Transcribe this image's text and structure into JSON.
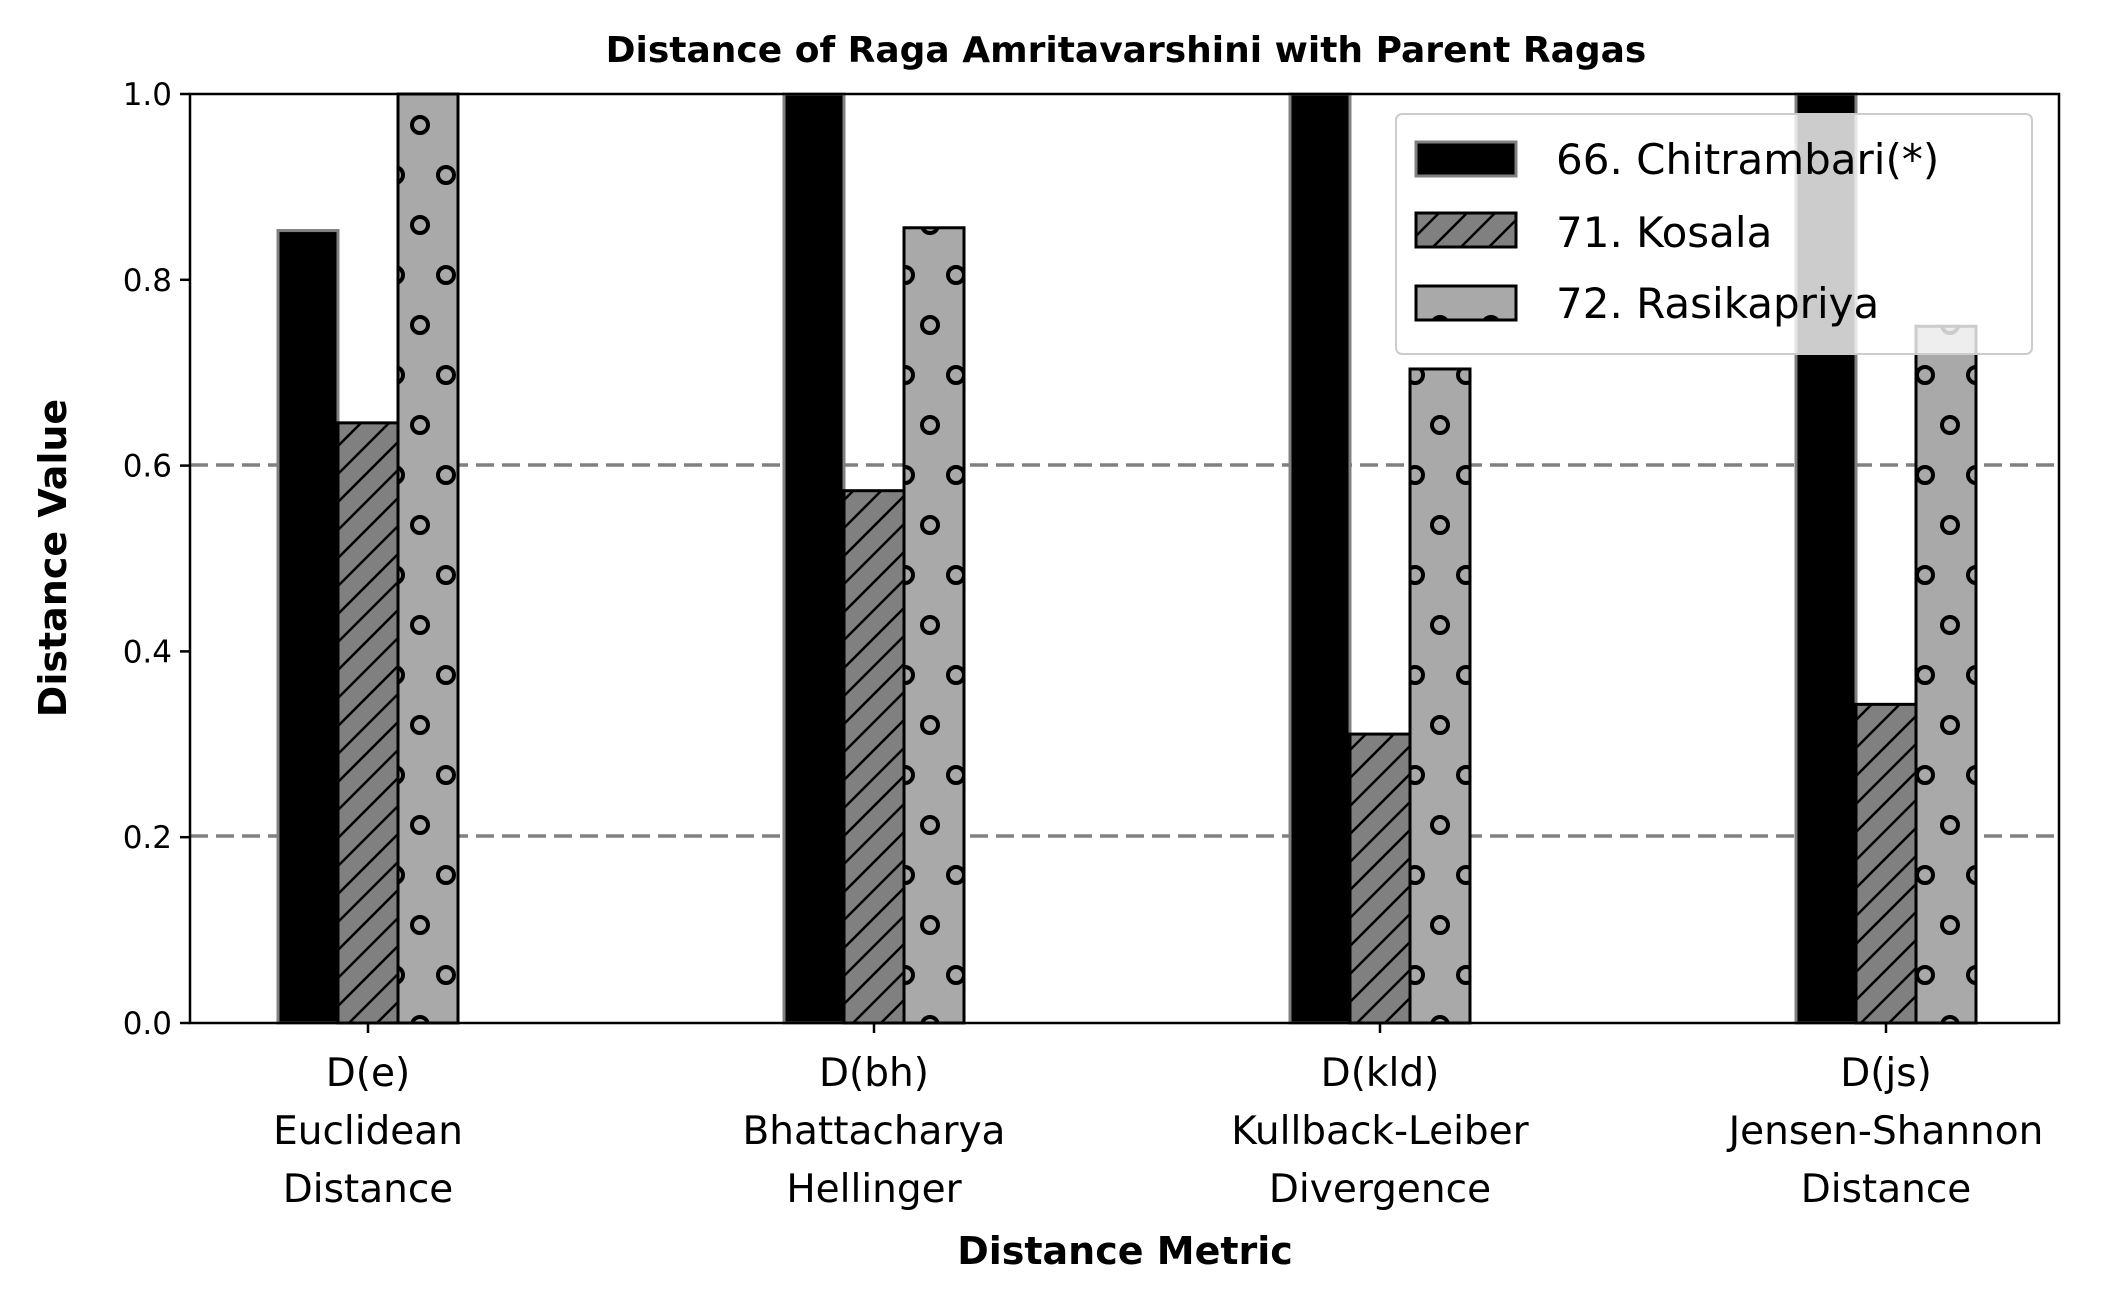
{
  "chart_data": {
    "type": "bar",
    "title": "Distance of Raga Amritavarshini with Parent Ragas",
    "xlabel": "Distance Metric",
    "ylabel": "Distance Value",
    "ylim": [
      0,
      1.0
    ],
    "yticks": [
      "0.0",
      "0.2",
      "0.4",
      "0.6",
      "0.8",
      "1.0"
    ],
    "grid": "horizontal dashed",
    "reference_lines": [
      0.2,
      0.6
    ],
    "legend_position": "top-right",
    "categories": [
      [
        "D(e)",
        "Euclidean",
        "Distance"
      ],
      [
        "D(bh)",
        "Bhattacharya",
        "Hellinger"
      ],
      [
        "D(kld)",
        "Kullback-Leiber",
        "Divergence"
      ],
      [
        "D(js)",
        "Jensen-Shannon",
        "Distance"
      ]
    ],
    "series": [
      {
        "name": "66. Chitrambari(*)",
        "values": [
          0.853,
          1.0,
          1.0,
          1.0
        ],
        "color": "#000000",
        "hatch": "none"
      },
      {
        "name": "71. Kosala",
        "values": [
          0.646,
          0.573,
          0.311,
          0.343
        ],
        "color": "#808080",
        "hatch": "diagonal"
      },
      {
        "name": "72. Rasikapriya",
        "values": [
          1.0,
          0.856,
          0.704,
          0.75
        ],
        "color": "#a9a9a9",
        "hatch": "circles"
      }
    ]
  }
}
